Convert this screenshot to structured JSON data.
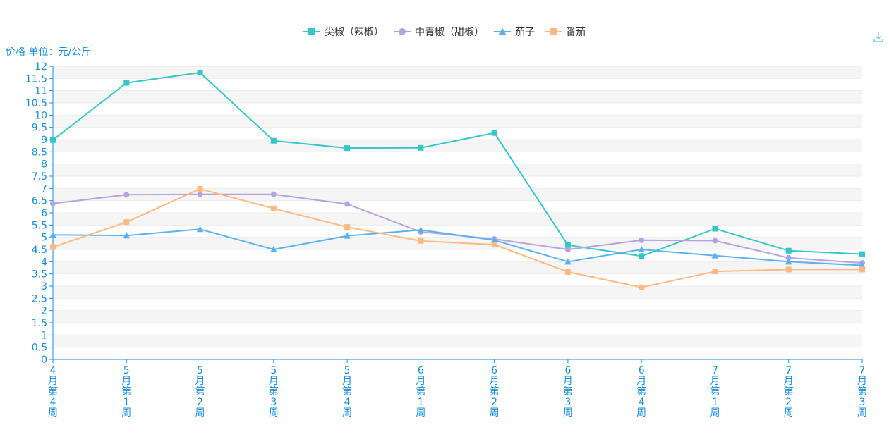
{
  "chart_data": {
    "type": "line",
    "title": "",
    "ylabel": "价格 单位：元/公斤",
    "xlabel": "",
    "ylim": [
      0,
      12
    ],
    "y_ticks": [
      "0",
      "0.5",
      "1",
      "1.5",
      "2",
      "2.5",
      "3",
      "3.5",
      "4",
      "4.5",
      "5",
      "5.5",
      "6",
      "6.5",
      "7",
      "7.5",
      "8",
      "8.5",
      "9",
      "9.5",
      "10",
      "10.5",
      "11",
      "11.5",
      "12"
    ],
    "categories": [
      "4月第4周",
      "5月第1周",
      "5月第2周",
      "5月第3周",
      "5月第4周",
      "6月第1周",
      "6月第2周",
      "6月第3周",
      "6月第4周",
      "7月第1周",
      "7月第2周",
      "7月第3周"
    ],
    "legend_position": "top-center",
    "grid": "horizontal-banded",
    "series": [
      {
        "name": "尖椒（辣椒）",
        "color": "#36c6c8",
        "marker": "square",
        "values": [
          8.98,
          11.32,
          11.74,
          8.95,
          8.65,
          8.66,
          9.27,
          4.68,
          4.23,
          5.35,
          4.45,
          4.31
        ]
      },
      {
        "name": "中青椒（甜椒）",
        "color": "#b6a2de",
        "marker": "circle",
        "values": [
          6.38,
          6.74,
          6.76,
          6.76,
          6.36,
          5.22,
          4.93,
          4.5,
          4.88,
          4.86,
          4.16,
          3.95
        ]
      },
      {
        "name": "茄子",
        "color": "#5ab1ef",
        "marker": "triangle",
        "values": [
          5.1,
          5.07,
          5.33,
          4.5,
          5.06,
          5.3,
          4.88,
          4.0,
          4.5,
          4.25,
          4.0,
          3.85
        ]
      },
      {
        "name": "番茄",
        "color": "#ffb980",
        "marker": "square",
        "values": [
          4.6,
          5.62,
          6.98,
          6.18,
          5.42,
          4.85,
          4.7,
          3.58,
          2.95,
          3.6,
          3.68,
          3.68
        ]
      }
    ]
  },
  "toolbox": {
    "download_icon": "download-icon",
    "color": "#7ec8e8"
  }
}
